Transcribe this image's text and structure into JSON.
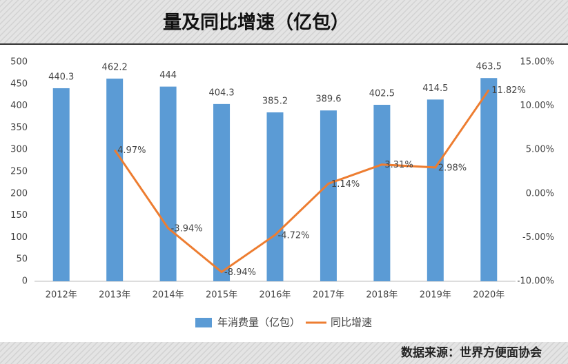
{
  "title": "量及同比增速（亿包）",
  "source": "数据来源：世界方便面协会",
  "chart_data": {
    "type": "bar_line",
    "categories": [
      "2012年",
      "2013年",
      "2014年",
      "2015年",
      "2016年",
      "2017年",
      "2018年",
      "2019年",
      "2020年"
    ],
    "series": [
      {
        "name": "年消费量（亿包）",
        "type": "bar",
        "color": "#5b9bd5",
        "values": [
          440.3,
          462.2,
          444,
          404.3,
          385.2,
          389.6,
          402.5,
          414.5,
          463.5
        ]
      },
      {
        "name": "同比增速",
        "type": "line",
        "axis": "y2",
        "color": "#ed7d31",
        "values": [
          null,
          4.97,
          -3.94,
          -8.94,
          -4.72,
          1.14,
          3.31,
          2.98,
          11.82
        ],
        "value_labels": [
          null,
          "4.97%",
          "-3.94%",
          "-8.94%",
          "-4.72%",
          "1.14%",
          "3.31%",
          "2.98%",
          "11.82%"
        ]
      }
    ],
    "ylim": [
      0,
      500
    ],
    "yticks": [
      0,
      50,
      100,
      150,
      200,
      250,
      300,
      350,
      400,
      450,
      500
    ],
    "y2lim": [
      -10,
      15
    ],
    "y2ticks": [
      {
        "value": -10,
        "label": "-10.00%"
      },
      {
        "value": -5,
        "label": "-5.00%"
      },
      {
        "value": 0,
        "label": "0.00%"
      },
      {
        "value": 5,
        "label": "5.00%"
      },
      {
        "value": 10,
        "label": "10.00%"
      },
      {
        "value": 15,
        "label": "15.00%"
      }
    ],
    "legend": "bottom"
  }
}
